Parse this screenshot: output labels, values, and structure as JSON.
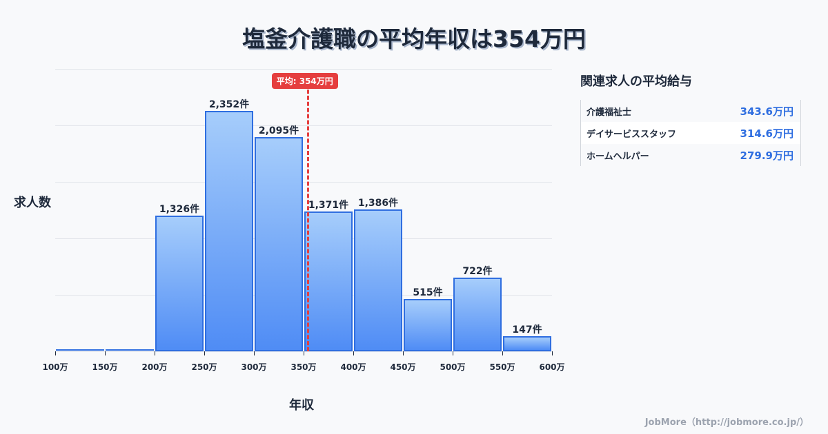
{
  "title": "塩釜介護職の平均年収は354万円",
  "chart_data": {
    "type": "bar",
    "title": "塩釜介護職の平均年収は354万円",
    "xlabel": "年収",
    "ylabel": "求人数",
    "categories": [
      "100-150万",
      "150-200万",
      "200-250万",
      "250-300万",
      "300-350万",
      "350-400万",
      "400-450万",
      "450-500万",
      "500-550万",
      "550-600万"
    ],
    "x_ticks": [
      "100万",
      "150万",
      "200万",
      "250万",
      "300万",
      "350万",
      "400万",
      "450万",
      "500万",
      "550万",
      "600万"
    ],
    "values": [
      0,
      0,
      1326,
      2352,
      2095,
      1371,
      1386,
      515,
      722,
      147
    ],
    "value_labels": [
      "",
      "",
      "1,326件",
      "2,352件",
      "2,095件",
      "1,371件",
      "1,386件",
      "515件",
      "722件",
      "147件"
    ],
    "ylim": [
      0,
      2764
    ],
    "grid": true,
    "annotations": [
      {
        "type": "vline",
        "x": 354,
        "label": "平均: 354万円",
        "color": "#e53e3e"
      }
    ]
  },
  "average": {
    "label": "平均: 354万円",
    "value": 354
  },
  "axis": {
    "xlabel": "年収",
    "ylabel": "求人数"
  },
  "side_panel": {
    "title": "関連求人の平均給与",
    "rows": [
      {
        "name": "介護福祉士",
        "value": "343.6万円"
      },
      {
        "name": "デイサービススタッフ",
        "value": "314.6万円"
      },
      {
        "name": "ホームヘルパー",
        "value": "279.9万円"
      }
    ]
  },
  "footer": "JobMore（http://jobmore.co.jp/）",
  "colors": {
    "bar_border": "#2f6ee0",
    "bar_top": "#a6cdfb",
    "bar_bottom": "#4f8cf5",
    "average": "#e53e3e",
    "value_text": "#2f6ee0"
  }
}
